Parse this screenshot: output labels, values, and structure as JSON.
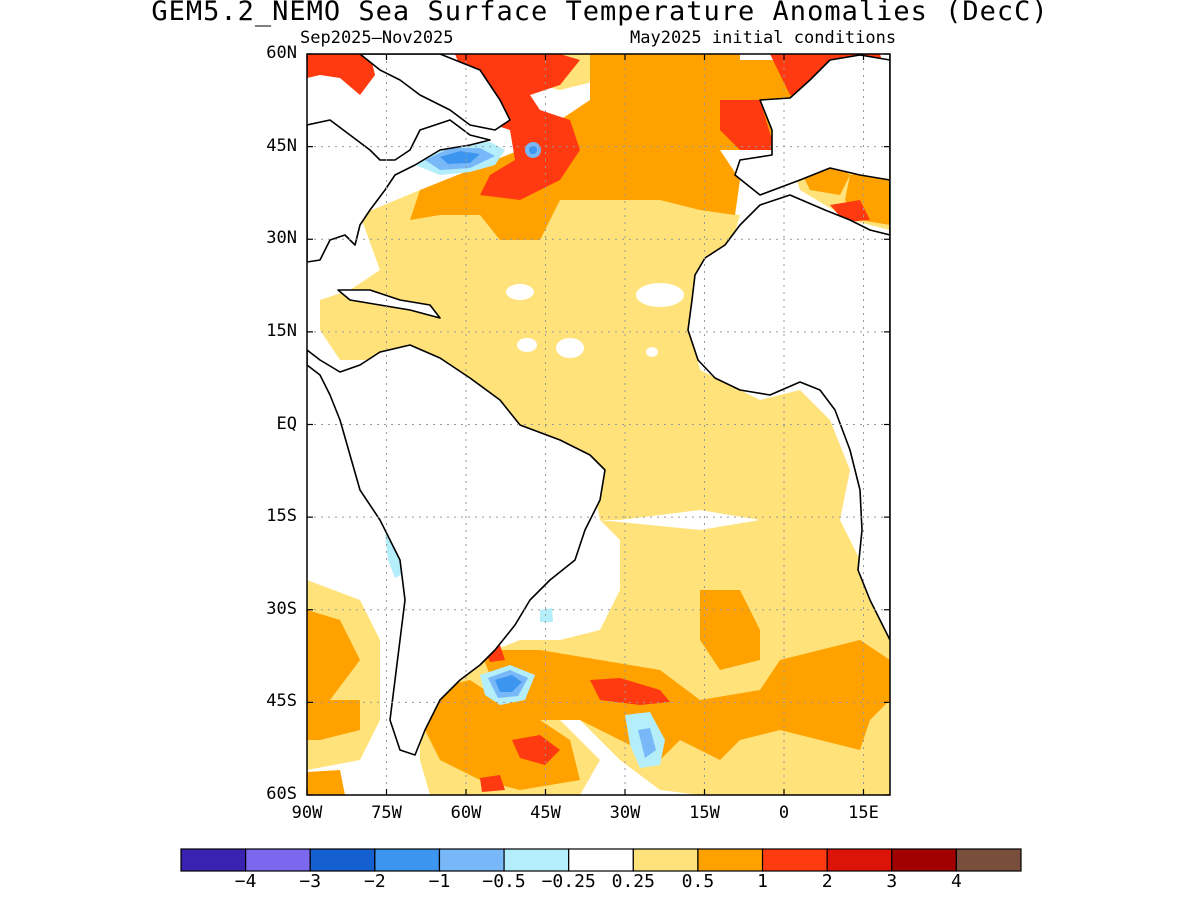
{
  "title": "GEM5.2_NEMO Sea Surface Temperature Anomalies (DecC)",
  "subtitle_left": "Sep2025–Nov2025",
  "subtitle_right": "May2025 initial conditions",
  "lat_labels": [
    "60N",
    "45N",
    "30N",
    "15N",
    "EQ",
    "15S",
    "30S",
    "45S",
    "60S"
  ],
  "lon_labels": [
    "90W",
    "75W",
    "60W",
    "45W",
    "30W",
    "15W",
    "0",
    "15E"
  ],
  "colorbar": {
    "colors": [
      "#3a22b0",
      "#7b68ee",
      "#1560d0",
      "#3c96f0",
      "#78b8f8",
      "#b4eefa",
      "#ffffff",
      "#ffe27a",
      "#ffa200",
      "#ff3a10",
      "#dc1408",
      "#a00000",
      "#7a4e3c"
    ],
    "labels": [
      "−4",
      "−3",
      "−2",
      "−1",
      "−0.5",
      "−0.25",
      "0.25",
      "0.5",
      "1",
      "2",
      "3",
      "4"
    ]
  },
  "map_extent": {
    "lon": [
      -90,
      20
    ],
    "lat": [
      -60,
      60
    ]
  }
}
